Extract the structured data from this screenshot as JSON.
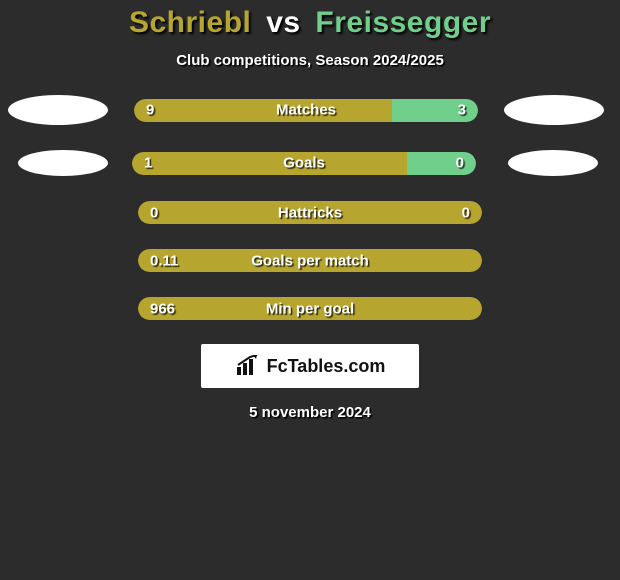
{
  "colors": {
    "p1": "#b6a52f",
    "p2": "#71cf8c",
    "bg": "#2c2c2c",
    "ellipse": "#ffffff"
  },
  "title": {
    "p1": "Schriebl",
    "vs": "vs",
    "p2": "Freissegger"
  },
  "subtitle": "Club competitions, Season 2024/2025",
  "stats": [
    {
      "label": "Matches",
      "left_val": "9",
      "right_val": "3",
      "left_pct": 75,
      "right_pct": 25,
      "show_ellipses": true,
      "ellipse_variant": "row1"
    },
    {
      "label": "Goals",
      "left_val": "1",
      "right_val": "0",
      "left_pct": 80,
      "right_pct": 20,
      "show_ellipses": true,
      "ellipse_variant": "row2"
    },
    {
      "label": "Hattricks",
      "left_val": "0",
      "right_val": "0",
      "left_pct": 100,
      "right_pct": 0,
      "show_ellipses": false
    },
    {
      "label": "Goals per match",
      "left_val": "0.11",
      "right_val": "",
      "left_pct": 100,
      "right_pct": 0,
      "show_ellipses": false
    },
    {
      "label": "Min per goal",
      "left_val": "966",
      "right_val": "",
      "left_pct": 100,
      "right_pct": 0,
      "show_ellipses": false
    }
  ],
  "logo": {
    "text": "FcTables.com"
  },
  "date": "5 november 2024"
}
